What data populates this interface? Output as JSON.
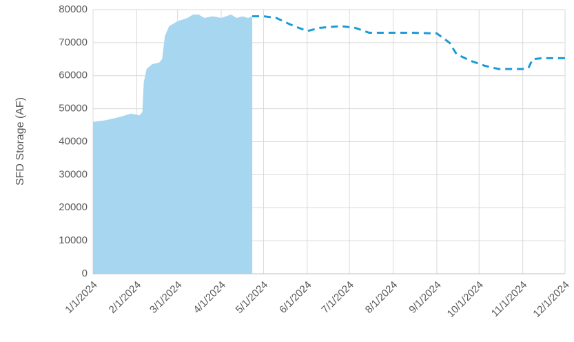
{
  "chart_data": {
    "type": "area_line",
    "ylabel": "SFD Storage (AF)",
    "ylim": [
      0,
      80000
    ],
    "yticks": [
      0,
      10000,
      20000,
      30000,
      40000,
      50000,
      60000,
      70000,
      80000
    ],
    "xlim": [
      "1/1/2024",
      "12/1/2024"
    ],
    "xticks": [
      "1/1/2024",
      "2/1/2024",
      "3/1/2024",
      "4/1/2024",
      "5/1/2024",
      "6/1/2024",
      "7/1/2024",
      "8/1/2024",
      "9/1/2024",
      "10/1/2024",
      "11/1/2024",
      "12/1/2024"
    ],
    "grid": true,
    "series": [
      {
        "style": "area",
        "color": "#a7d7f0",
        "x": [
          "1/1/2024",
          "1/10/2024",
          "1/20/2024",
          "1/28/2024",
          "2/3/2024",
          "2/5/2024",
          "2/6/2024",
          "2/8/2024",
          "2/12/2024",
          "2/17/2024",
          "2/19/2024",
          "2/21/2024",
          "2/24/2024",
          "3/1/2024",
          "3/8/2024",
          "3/12/2024",
          "3/16/2024",
          "3/20/2024",
          "3/26/2024",
          "4/1/2024",
          "4/8/2024",
          "4/12/2024",
          "4/16/2024",
          "4/20/2024",
          "4/23/2024"
        ],
        "values": [
          46000,
          46500,
          47500,
          48500,
          48000,
          49000,
          58000,
          62000,
          63500,
          64000,
          65000,
          72000,
          75000,
          76500,
          77500,
          78500,
          78500,
          77500,
          78000,
          77500,
          78500,
          77500,
          78000,
          77500,
          78000
        ]
      },
      {
        "style": "dashed",
        "color": "#1a9bd7",
        "x": [
          "4/23/2024",
          "5/1/2024",
          "5/10/2024",
          "5/20/2024",
          "6/1/2024",
          "6/10/2024",
          "6/25/2024",
          "7/5/2024",
          "7/15/2024",
          "8/1/2024",
          "8/15/2024",
          "9/1/2024",
          "9/10/2024",
          "9/15/2024",
          "9/25/2024",
          "10/5/2024",
          "10/15/2024",
          "11/1/2024",
          "11/5/2024",
          "11/8/2024",
          "11/15/2024",
          "12/1/2024"
        ],
        "values": [
          78000,
          78000,
          77500,
          75500,
          73500,
          74500,
          75000,
          74500,
          73000,
          73000,
          73000,
          72800,
          70000,
          66500,
          64500,
          63000,
          62000,
          62000,
          62300,
          65000,
          65300,
          65300
        ]
      }
    ]
  }
}
